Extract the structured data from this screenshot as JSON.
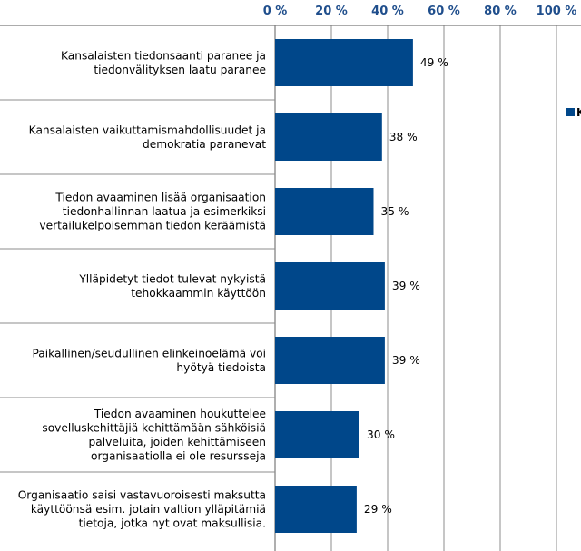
{
  "chart_data": {
    "type": "bar",
    "orientation": "horizontal",
    "categories": [
      "Kansalaisten tiedonsaanti paranee ja tiedonvälityksen laatu paranee",
      "Kansalaisten vaikuttamismahdollisuudet ja demokratia paranevat",
      "Tiedon avaaminen lisää organisaation tiedonhallinnan laatua ja esimerkiksi vertailukelpoisemman tiedon keräämistä",
      "Ylläpidetyt tiedot tulevat nykyistä tehokkaammin käyttöön",
      "Paikallinen/seudullinen elinkeinoelämä voi hyötyä tiedoista",
      "Tiedon avaaminen houkuttelee sovelluskehittäjiä kehittämään sähköisiä palveluita, joiden kehittämiseen organisaatiolla ei ole resursseja",
      "Organisaatio saisi vastavuoroisesti maksutta käyttöönsä esim. jotain valtion ylläpitämiä tietoja, jotka nyt ovat maksullisia."
    ],
    "category_lines": [
      [
        "Kansalaisten tiedonsaanti paranee ja",
        "tiedonvälityksen laatu paranee"
      ],
      [
        "Kansalaisten vaikuttamismahdollisuudet ja",
        "demokratia paranevat"
      ],
      [
        "Tiedon avaaminen lisää organisaation",
        "tiedonhallinnan laatua ja esimerkiksi",
        "vertailukelpoisemman tiedon keräämistä"
      ],
      [
        "Ylläpidetyt tiedot tulevat nykyistä",
        "tehokkaammin käyttöön"
      ],
      [
        "Paikallinen/seudullinen elinkeinoelämä voi",
        "hyötyä tiedoista"
      ],
      [
        "Tiedon avaaminen houkuttelee",
        "sovelluskehittäjiä kehittämään sähköisiä",
        "palveluita, joiden kehittämiseen",
        "organisaatiolla ei ole resursseja"
      ],
      [
        "Organisaatio saisi vastavuoroisesti maksutta",
        "käyttöönsä esim. jotain valtion ylläpitämiä",
        "tietoja, jotka nyt ovat maksullisia."
      ]
    ],
    "series": [
      {
        "name": "K",
        "values": [
          49,
          38,
          35,
          39,
          39,
          30,
          29
        ]
      }
    ],
    "data_labels": [
      "49 %",
      "38 %",
      "35 %",
      "39 %",
      "39 %",
      "30 %",
      "29 %"
    ],
    "x_ticks": [
      0,
      20,
      40,
      60,
      80,
      100
    ],
    "x_tick_labels": [
      "0 %",
      "20 %",
      "40 %",
      "60 %",
      "80 %",
      "100 %"
    ],
    "xlim": [
      0,
      100
    ],
    "axis_position": "top",
    "grid": true,
    "legend_position": "right (cropped)",
    "colors": {
      "bar": "#00478a",
      "tick": "#1f4e8c",
      "grid": "#8c8c8c",
      "separator": "#8c8c8c"
    }
  }
}
